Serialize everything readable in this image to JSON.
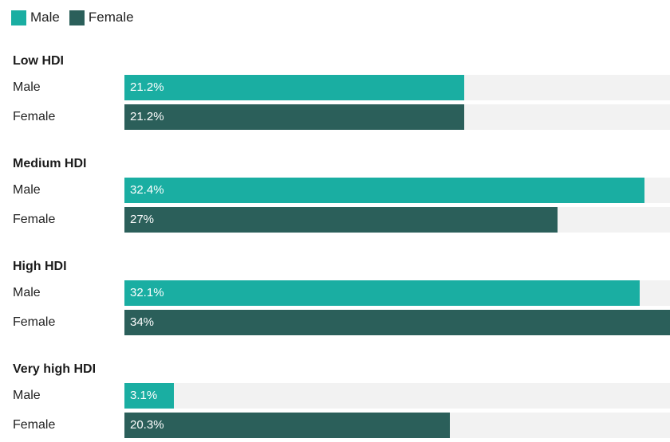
{
  "chart_data": {
    "type": "bar",
    "orientation": "horizontal",
    "legend": [
      {
        "name": "Male",
        "color": "#1aaea2"
      },
      {
        "name": "Female",
        "color": "#2b5f5a"
      }
    ],
    "xlim": [
      0,
      34
    ],
    "groups": [
      {
        "title": "Low HDI",
        "rows": [
          {
            "label": "Male",
            "series": "Male",
            "value": 21.2,
            "value_label": "21.2%"
          },
          {
            "label": "Female",
            "series": "Female",
            "value": 21.2,
            "value_label": "21.2%"
          }
        ]
      },
      {
        "title": "Medium HDI",
        "rows": [
          {
            "label": "Male",
            "series": "Male",
            "value": 32.4,
            "value_label": "32.4%"
          },
          {
            "label": "Female",
            "series": "Female",
            "value": 27,
            "value_label": "27%"
          }
        ]
      },
      {
        "title": "High HDI",
        "rows": [
          {
            "label": "Male",
            "series": "Male",
            "value": 32.1,
            "value_label": "32.1%"
          },
          {
            "label": "Female",
            "series": "Female",
            "value": 34,
            "value_label": "34%"
          }
        ]
      },
      {
        "title": "Very high HDI",
        "rows": [
          {
            "label": "Male",
            "series": "Male",
            "value": 3.1,
            "value_label": "3.1%"
          },
          {
            "label": "Female",
            "series": "Female",
            "value": 20.3,
            "value_label": "20.3%"
          }
        ]
      }
    ]
  }
}
